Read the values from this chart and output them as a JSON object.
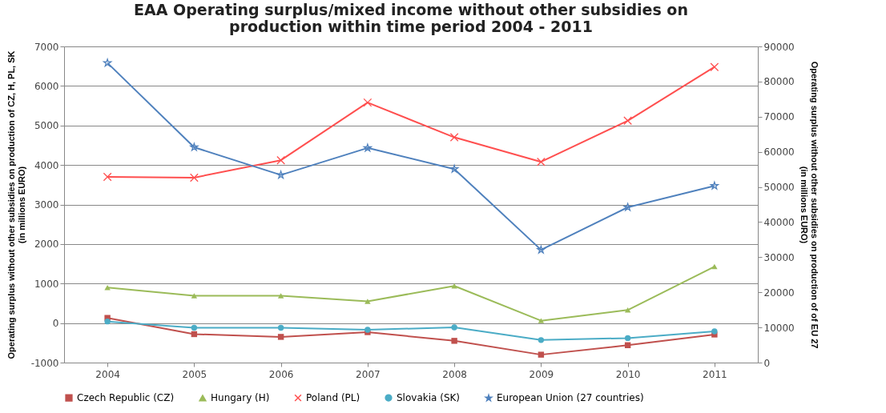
{
  "chart_data": {
    "type": "line",
    "title": "EAA Operating surplus/mixed income  without other subsidies on\nproduction within time period 2004 - 2011",
    "ylabel": "Operating surplus without other subsidies on production of  CZ, H, PL, SK\n(in millions EURO)",
    "y2label": "Operating surplus without other subsidies on production of  of EU 27\n(in millions EURO)",
    "categories": [
      "2004",
      "2005",
      "2006",
      "2007",
      "2008",
      "2009",
      "2010",
      "2011"
    ],
    "series": [
      {
        "name": "Czech Republic (CZ)",
        "color": "#c0504d",
        "marker": "square",
        "values": [
          130,
          -280,
          -350,
          -230,
          -450,
          -800,
          -560,
          -290
        ]
      },
      {
        "name": "Hungary (H)",
        "color": "#9bbb59",
        "marker": "triangle",
        "values": [
          900,
          690,
          690,
          550,
          940,
          60,
          330,
          1430
        ]
      },
      {
        "name": "Poland (PL)",
        "color": "#ff4f4f",
        "marker": "cross",
        "values": [
          3700,
          3680,
          4120,
          5580,
          4700,
          4080,
          5120,
          6480
        ]
      },
      {
        "name": "Slovakia (SK)",
        "color": "#4bacc6",
        "marker": "circle",
        "values": [
          40,
          -120,
          -120,
          -170,
          -110,
          -430,
          -380,
          -210
        ]
      },
      {
        "name": "European Union (27 countries)",
        "color": "#4f81bd",
        "marker": "star",
        "axis": "y2",
        "values": [
          85300,
          61300,
          53400,
          61100,
          55100,
          32100,
          44200,
          50300
        ]
      }
    ],
    "ylim": [
      -1000,
      7000
    ],
    "yticks": [
      -1000,
      0,
      1000,
      2000,
      3000,
      4000,
      5000,
      6000,
      7000
    ],
    "y2lim": [
      0,
      90000
    ],
    "y2ticks": [
      0,
      10000,
      20000,
      30000,
      40000,
      50000,
      60000,
      70000,
      80000,
      90000
    ],
    "grid": "y",
    "legend": "bottom"
  }
}
